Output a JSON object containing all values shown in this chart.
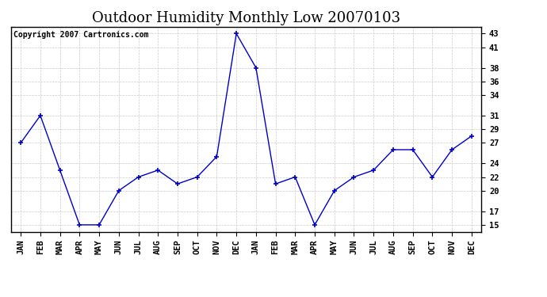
{
  "title": "Outdoor Humidity Monthly Low 20070103",
  "copyright_text": "Copyright 2007 Cartronics.com",
  "x_labels": [
    "JAN",
    "FEB",
    "MAR",
    "APR",
    "MAY",
    "JUN",
    "JUL",
    "AUG",
    "SEP",
    "OCT",
    "NOV",
    "DEC",
    "JAN",
    "FEB",
    "MAR",
    "APR",
    "MAY",
    "JUN",
    "JUL",
    "AUG",
    "SEP",
    "OCT",
    "NOV",
    "DEC"
  ],
  "y_values": [
    27,
    31,
    23,
    15,
    15,
    20,
    22,
    23,
    21,
    22,
    25,
    43,
    38,
    21,
    22,
    15,
    20,
    22,
    23,
    26,
    26,
    22,
    26,
    28
  ],
  "line_color": "#0000cc",
  "marker_style": "+",
  "marker_size": 5,
  "marker_color": "#0000cc",
  "ylim_min": 14,
  "ylim_max": 44,
  "yticks": [
    15,
    17,
    20,
    22,
    24,
    27,
    29,
    31,
    34,
    36,
    38,
    41,
    43
  ],
  "grid_color": "#cccccc",
  "background_color": "#ffffff",
  "plot_bg_color": "#ffffff",
  "title_fontsize": 13,
  "copyright_fontsize": 7,
  "axis_label_fontsize": 7.5
}
